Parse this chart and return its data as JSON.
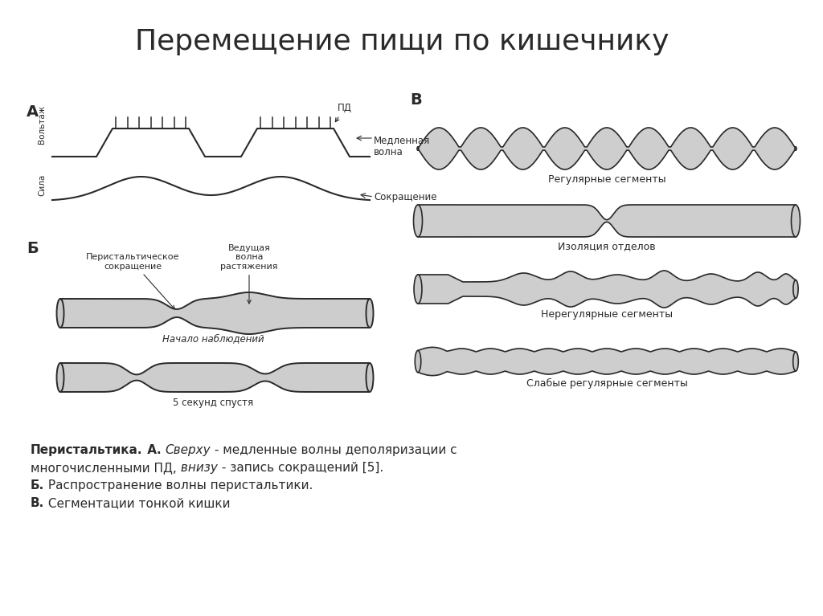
{
  "title": "Перемещение пищи по кишечнику",
  "title_fontsize": 26,
  "bg_color": "#ffffff",
  "label_A": "А",
  "label_B_rus": "Б",
  "label_V": "В",
  "label_voltage": "Вольтаж",
  "label_force": "Сила",
  "label_PD": "ПД",
  "label_slow_wave": "Медленная\nволна",
  "label_contraction": "Сокращение",
  "label_peristaltic": "Перистальтическое\nсокращение",
  "label_leading_wave": "Ведущая\nволна\nрастяжения",
  "label_start_obs": "Начало наблюдений",
  "label_5sec": "5 секунд спустя",
  "label_reg_seg": "Регулярные сегменты",
  "label_iso": "Изоляция отделов",
  "label_irreg": "Нерегулярные сегменты",
  "label_weak": "Слабые регулярные сегменты",
  "line_color": "#2a2a2a",
  "gut_fill": "#c8c8c8"
}
